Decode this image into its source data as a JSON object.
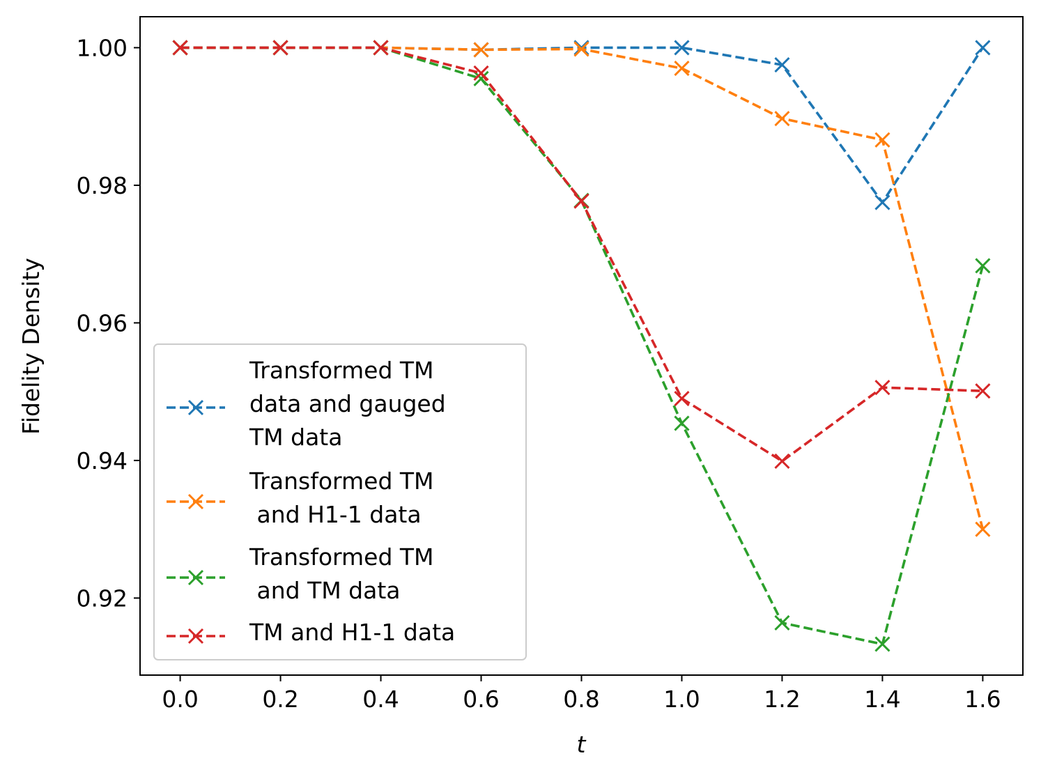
{
  "chart_data": {
    "type": "line",
    "title": "",
    "xlabel": "t",
    "ylabel": "Fidelity Density",
    "x": [
      0.0,
      0.2,
      0.4,
      0.6,
      0.8,
      1.0,
      1.2,
      1.4,
      1.6
    ],
    "xlim": [
      -0.08,
      1.68
    ],
    "ylim": [
      0.9088,
      1.0045
    ],
    "xticks": [
      0.0,
      0.2,
      0.4,
      0.6,
      0.8,
      1.0,
      1.2,
      1.4,
      1.6
    ],
    "xtick_labels": [
      "0.0",
      "0.2",
      "0.4",
      "0.6",
      "0.8",
      "1.0",
      "1.2",
      "1.4",
      "1.6"
    ],
    "yticks": [
      0.92,
      0.94,
      0.96,
      0.98,
      1.0
    ],
    "ytick_labels": [
      "0.92",
      "0.94",
      "0.96",
      "0.98",
      "1.00"
    ],
    "grid": false,
    "legend_position": "lower-left",
    "series": [
      {
        "name": "Transformed TM data and gauged TM data",
        "legend_lines": [
          "Transformed TM",
          "data and gauged",
          "TM data"
        ],
        "color": "#1f77b4",
        "linestyle": "dashed",
        "marker": "x",
        "values": [
          1.0,
          1.0,
          1.0,
          0.9997,
          1.0,
          1.0,
          0.9975,
          0.9775,
          1.0
        ]
      },
      {
        "name": "Transformed TM and H1-1 data",
        "legend_lines": [
          "Transformed TM",
          " and H1-1 data"
        ],
        "color": "#ff7f0e",
        "linestyle": "dashed",
        "marker": "x",
        "values": [
          1.0,
          1.0,
          1.0,
          0.9997,
          0.9998,
          0.997,
          0.9897,
          0.9866,
          0.93
        ]
      },
      {
        "name": "Transformed TM and TM data",
        "legend_lines": [
          "Transformed TM",
          " and TM data"
        ],
        "color": "#2ca02c",
        "linestyle": "dashed",
        "marker": "x",
        "values": [
          1.0,
          1.0,
          1.0,
          0.9955,
          0.9778,
          0.9454,
          0.9164,
          0.9133,
          0.9683
        ]
      },
      {
        "name": "TM and H1-1 data",
        "legend_lines": [
          "TM and H1-1 data"
        ],
        "color": "#d62728",
        "linestyle": "dashed",
        "marker": "x",
        "values": [
          1.0,
          1.0,
          1.0,
          0.9963,
          0.9777,
          0.949,
          0.9399,
          0.9506,
          0.9501
        ]
      }
    ]
  }
}
